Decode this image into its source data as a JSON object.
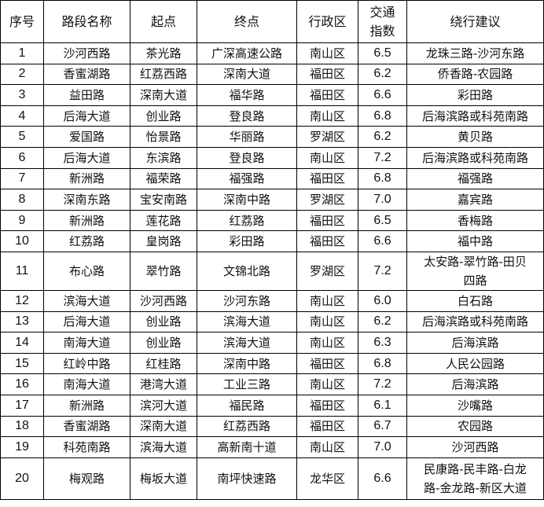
{
  "table": {
    "headers": [
      "序号",
      "路段名称",
      "起点",
      "终点",
      "行政区",
      "交通指数",
      "绕行建议"
    ],
    "rows": [
      [
        "1",
        "沙河西路",
        "茶光路",
        "广深高速公路",
        "南山区",
        "6.5",
        "龙珠三路-沙河东路"
      ],
      [
        "2",
        "香蜜湖路",
        "红荔西路",
        "深南大道",
        "福田区",
        "6.2",
        "侨香路-农园路"
      ],
      [
        "3",
        "益田路",
        "深南大道",
        "福华路",
        "福田区",
        "6.6",
        "彩田路"
      ],
      [
        "4",
        "后海大道",
        "创业路",
        "登良路",
        "南山区",
        "6.8",
        "后海滨路或科苑南路"
      ],
      [
        "5",
        "爱国路",
        "怡景路",
        "华丽路",
        "罗湖区",
        "6.2",
        "黄贝路"
      ],
      [
        "6",
        "后海大道",
        "东滨路",
        "登良路",
        "南山区",
        "7.2",
        "后海滨路或科苑南路"
      ],
      [
        "7",
        "新洲路",
        "福荣路",
        "福强路",
        "福田区",
        "6.8",
        "福强路"
      ],
      [
        "8",
        "深南东路",
        "宝安南路",
        "深南中路",
        "罗湖区",
        "7.0",
        "嘉宾路"
      ],
      [
        "9",
        "新洲路",
        "莲花路",
        "红荔路",
        "福田区",
        "6.5",
        "香梅路"
      ],
      [
        "10",
        "红荔路",
        "皇岗路",
        "彩田路",
        "福田区",
        "6.6",
        "福中路"
      ],
      [
        "11",
        "布心路",
        "翠竹路",
        "文锦北路",
        "罗湖区",
        "7.2",
        "太安路-翠竹路-田贝四路"
      ],
      [
        "12",
        "滨海大道",
        "沙河西路",
        "沙河东路",
        "南山区",
        "6.0",
        "白石路"
      ],
      [
        "13",
        "后海大道",
        "创业路",
        "滨海大道",
        "南山区",
        "6.2",
        "后海滨路或科苑南路"
      ],
      [
        "14",
        "南海大道",
        "创业路",
        "滨海大道",
        "南山区",
        "6.3",
        "后海滨路"
      ],
      [
        "15",
        "红岭中路",
        "红桂路",
        "深南中路",
        "福田区",
        "6.8",
        "人民公园路"
      ],
      [
        "16",
        "南海大道",
        "港湾大道",
        "工业三路",
        "南山区",
        "7.2",
        "后海滨路"
      ],
      [
        "17",
        "新洲路",
        "滨河大道",
        "福民路",
        "福田区",
        "6.1",
        "沙嘴路"
      ],
      [
        "18",
        "香蜜湖路",
        "深南大道",
        "红荔西路",
        "福田区",
        "6.7",
        "农园路"
      ],
      [
        "19",
        "科苑南路",
        "滨海大道",
        "高新南十道",
        "南山区",
        "7.0",
        "沙河西路"
      ],
      [
        "20",
        "梅观路",
        "梅坂大道",
        "南坪快速路",
        "龙华区",
        "6.6",
        "民康路-民丰路-白龙路-金龙路-新区大道"
      ]
    ]
  }
}
